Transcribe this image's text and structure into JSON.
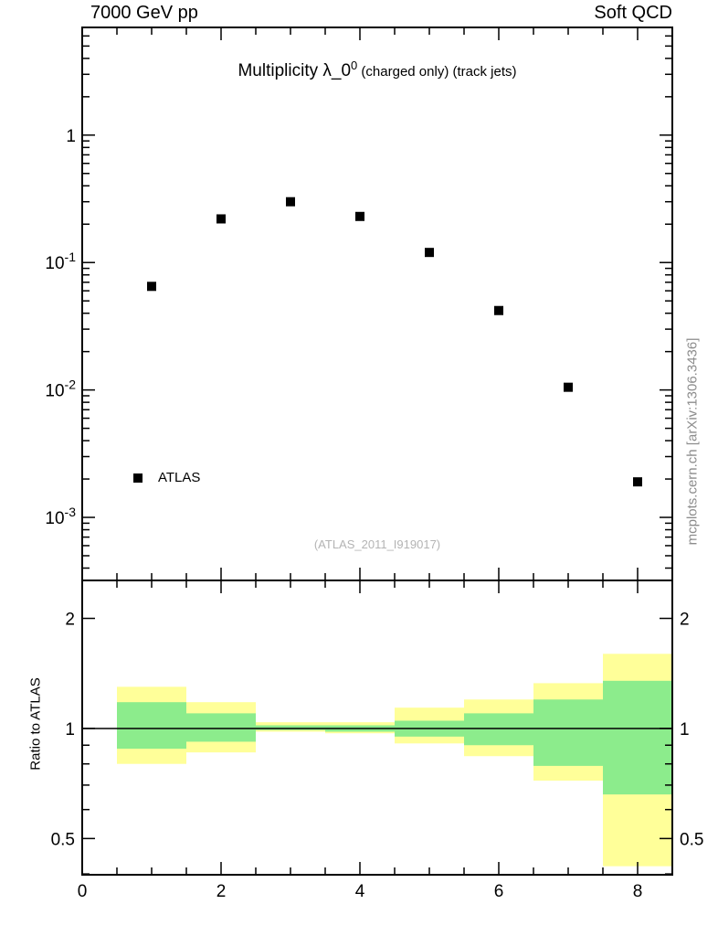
{
  "header": {
    "left": "7000 GeV pp",
    "right": "Soft QCD"
  },
  "title": {
    "main": "Multiplicity λ_0",
    "sup": "0",
    "rest": " (charged only) (track jets)"
  },
  "legend": {
    "label": "ATLAS"
  },
  "annotation": "(ATLAS_2011_I919017)",
  "watermark": "mcplots.cern.ch [arXiv:1306.3436]",
  "ratio_ylabel": "Ratio to ATLAS",
  "colors": {
    "yellow": "#ffff99",
    "green": "#8cec8c",
    "marker": "#000000",
    "frame": "#000000",
    "annotation_gray": "#b4b4b4",
    "watermark_gray": "#8c8c8c"
  },
  "chart_data": [
    {
      "type": "scatter",
      "title": "Multiplicity λ_0^0 (charged only) (track jets)",
      "series": [
        {
          "name": "ATLAS",
          "x": [
            1,
            2,
            3,
            4,
            5,
            6,
            7,
            8
          ],
          "y": [
            0.065,
            0.22,
            0.3,
            0.23,
            0.12,
            0.042,
            0.0105,
            0.0019
          ]
        }
      ],
      "xlim": [
        0,
        8.5
      ],
      "ylim": [
        0.00032,
        7
      ],
      "yscale": "log",
      "xticks": [
        0,
        2,
        4,
        6,
        8
      ],
      "xtick_minor_step": 0.5,
      "ytick_labels": [
        {
          "v": 1,
          "base": "1",
          "exp": ""
        },
        {
          "v": 0.1,
          "base": "10",
          "exp": "-1"
        },
        {
          "v": 0.01,
          "base": "10",
          "exp": "-2"
        },
        {
          "v": 0.001,
          "base": "10",
          "exp": "-3"
        }
      ],
      "grid": false,
      "legend_position": "left-middle"
    },
    {
      "type": "band",
      "ylabel": "Ratio to ATLAS",
      "xlim": [
        0,
        8.5
      ],
      "ylim": [
        0.398,
        2.54
      ],
      "yscale": "log",
      "xticks": [
        0,
        2,
        4,
        6,
        8
      ],
      "yticks": [
        0.5,
        1,
        2
      ],
      "ytick_minor": [
        0.4,
        0.6,
        0.7,
        0.8,
        0.9
      ],
      "reference_y": 1,
      "bins": [
        {
          "x0": 0.5,
          "x1": 1.5,
          "yellow": [
            0.8,
            1.3
          ],
          "green": [
            0.88,
            1.18
          ]
        },
        {
          "x0": 1.5,
          "x1": 2.5,
          "yellow": [
            0.86,
            1.18
          ],
          "green": [
            0.92,
            1.1
          ]
        },
        {
          "x0": 2.5,
          "x1": 3.5,
          "yellow": [
            0.98,
            1.04
          ],
          "green": [
            0.99,
            1.02
          ]
        },
        {
          "x0": 3.5,
          "x1": 4.5,
          "yellow": [
            0.97,
            1.04
          ],
          "green": [
            0.98,
            1.02
          ]
        },
        {
          "x0": 4.5,
          "x1": 5.5,
          "yellow": [
            0.91,
            1.14
          ],
          "green": [
            0.95,
            1.05
          ]
        },
        {
          "x0": 5.5,
          "x1": 6.5,
          "yellow": [
            0.84,
            1.2
          ],
          "green": [
            0.9,
            1.1
          ]
        },
        {
          "x0": 6.5,
          "x1": 7.5,
          "yellow": [
            0.72,
            1.33
          ],
          "green": [
            0.79,
            1.2
          ]
        },
        {
          "x0": 7.5,
          "x1": 8.5,
          "yellow": [
            0.42,
            1.6
          ],
          "green": [
            0.66,
            1.35
          ]
        }
      ]
    }
  ]
}
